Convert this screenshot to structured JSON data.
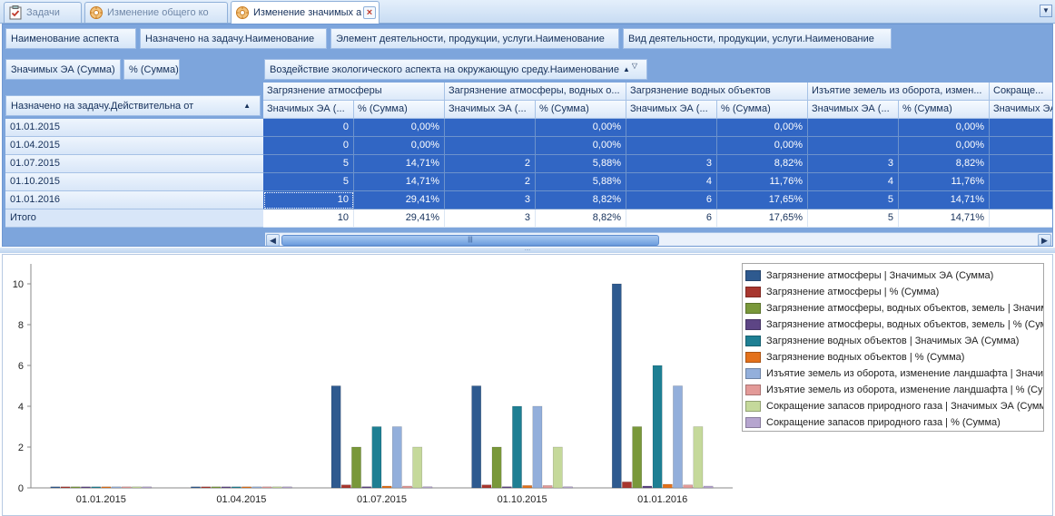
{
  "tabs": [
    {
      "label": "Задачи",
      "icon": "tasks-icon"
    },
    {
      "label": "Изменение общего ко",
      "icon": "gear-star-icon"
    },
    {
      "label": "Изменение значимых а",
      "icon": "gear-star-icon"
    }
  ],
  "tab_close": "×",
  "tab_menu_glyph": "▼",
  "pivot": {
    "filter_fields": [
      "Наименование аспекта",
      "Назначено на задачу.Наименование",
      "Элемент деятельности, продукции, услуги.Наименование",
      "Вид деятельности, продукции, услуги.Наименование"
    ],
    "data_fields": [
      "Значимых ЭА (Сумма)",
      "% (Сумма)"
    ],
    "column_field": "Воздействие экологического аспекта на окружающую среду.Наименование",
    "column_field_sort": "▲",
    "column_field_filter": "▽",
    "row_field": "Назначено на задачу.Действительна от",
    "row_field_sort": "▲",
    "column_groups": [
      "Загрязнение атмосферы",
      "Загрязнение атмосферы, водных о...",
      "Загрязнение водных объектов",
      "Изъятие земель из оборота, измен...",
      "Сокраще..."
    ],
    "measure_headers": [
      "Значимых ЭА (...",
      "% (Сумма)"
    ],
    "rows": [
      {
        "label": "01.01.2015",
        "cells": [
          "0",
          "0,00%",
          "",
          "0,00%",
          "",
          "0,00%",
          "",
          "0,00%",
          ""
        ]
      },
      {
        "label": "01.04.2015",
        "cells": [
          "0",
          "0,00%",
          "",
          "0,00%",
          "",
          "0,00%",
          "",
          "0,00%",
          ""
        ]
      },
      {
        "label": "01.07.2015",
        "cells": [
          "5",
          "14,71%",
          "2",
          "5,88%",
          "3",
          "8,82%",
          "3",
          "8,82%",
          ""
        ]
      },
      {
        "label": "01.10.2015",
        "cells": [
          "5",
          "14,71%",
          "2",
          "5,88%",
          "4",
          "11,76%",
          "4",
          "11,76%",
          ""
        ]
      },
      {
        "label": "01.01.2016",
        "cells": [
          "10",
          "29,41%",
          "3",
          "8,82%",
          "6",
          "17,65%",
          "5",
          "14,71%",
          ""
        ]
      }
    ],
    "total": {
      "label": "Итого",
      "cells": [
        "10",
        "29,41%",
        "3",
        "8,82%",
        "6",
        "17,65%",
        "5",
        "14,71%",
        ""
      ]
    }
  },
  "scroll": {
    "left": "◀",
    "right": "▶",
    "grip": "|||"
  },
  "splitter_grip": "....",
  "chart_data": {
    "type": "bar",
    "categories": [
      "01.01.2015",
      "01.04.2015",
      "01.07.2015",
      "01.10.2015",
      "01.01.2016"
    ],
    "ylim": [
      0,
      10
    ],
    "yticks": [
      0,
      2,
      4,
      6,
      8,
      10
    ],
    "legend_position": "right",
    "series": [
      {
        "name": "Загрязнение атмосферы | Значимых ЭА (Сумма)",
        "color": "#2e5a8f",
        "values": [
          0,
          0,
          5,
          5,
          10
        ]
      },
      {
        "name": "Загрязнение атмосферы | % (Сумма)",
        "color": "#a8362e",
        "values": [
          0,
          0,
          0.1471,
          0.1471,
          0.2941
        ]
      },
      {
        "name": "Загрязнение атмосферы, водных объектов, земель | Значимых ЭА (Сумма)",
        "color": "#79983a",
        "values": [
          0,
          0,
          2,
          2,
          3
        ]
      },
      {
        "name": "Загрязнение атмосферы, водных объектов, земель | % (Сумма)",
        "color": "#5d4585",
        "values": [
          0,
          0,
          0.0588,
          0.0588,
          0.0882
        ]
      },
      {
        "name": "Загрязнение водных объектов | Значимых ЭА (Сумма)",
        "color": "#1e7f93",
        "values": [
          0,
          0,
          3,
          4,
          6
        ]
      },
      {
        "name": "Загрязнение водных объектов | % (Сумма)",
        "color": "#e3711b",
        "values": [
          0,
          0,
          0.0882,
          0.1176,
          0.1765
        ]
      },
      {
        "name": "Изъятие земель из оборота, изменение ландшафта | Значимых ЭА (Сумма)",
        "color": "#93afdb",
        "values": [
          0,
          0,
          3,
          4,
          5
        ]
      },
      {
        "name": "Изъятие земель из оборота, изменение ландшафта | % (Сумма)",
        "color": "#e39a98",
        "values": [
          0,
          0,
          0.0882,
          0.1176,
          0.1471
        ]
      },
      {
        "name": "Сокращение запасов природного газа | Значимых ЭА (Сумма)",
        "color": "#c5d99b",
        "values": [
          0,
          0,
          2,
          2,
          3
        ]
      },
      {
        "name": "Сокращение запасов природного газа | % (Сумма)",
        "color": "#b6a5cf",
        "values": [
          0,
          0,
          0.0588,
          0.0588,
          0.0882
        ]
      }
    ]
  }
}
